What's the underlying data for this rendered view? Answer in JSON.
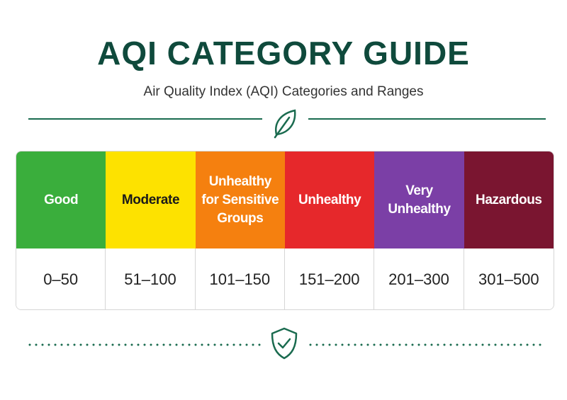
{
  "header": {
    "title": "AQI CATEGORY GUIDE",
    "subtitle": "Air Quality Index (AQI) Categories and Ranges"
  },
  "table": {
    "categories": [
      {
        "name": "Good",
        "range": "0–50",
        "color": "#3aae3c",
        "text_color": "#ffffff"
      },
      {
        "name": "Moderate",
        "range": "51–100",
        "color": "#fde200",
        "text_color": "#1a1a1a"
      },
      {
        "name": "Unhealthy for Sensitive Groups",
        "range": "101–150",
        "color": "#f5800f",
        "text_color": "#ffffff"
      },
      {
        "name": "Unhealthy",
        "range": "151–200",
        "color": "#e6282b",
        "text_color": "#ffffff"
      },
      {
        "name": "Very Unhealthy",
        "range": "201–300",
        "color": "#7b3fa6",
        "text_color": "#ffffff"
      },
      {
        "name": "Hazardous",
        "range": "301–500",
        "color": "#7a1530",
        "text_color": "#ffffff"
      }
    ]
  }
}
